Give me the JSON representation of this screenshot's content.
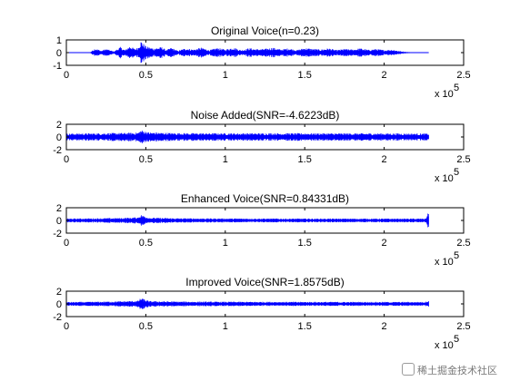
{
  "colors": {
    "signal": "#0000ff",
    "axes": "#000000",
    "background": "#ffffff"
  },
  "watermark": {
    "text": "稀土掘金技术社区",
    "icon": "logo-icon"
  },
  "chart_data": [
    {
      "type": "line",
      "title": "Original Voice(n=0.23)",
      "xlabel": "",
      "ylabel": "",
      "xlim": [
        0,
        250000
      ],
      "ylim": [
        -1,
        1
      ],
      "xticks": [
        0,
        0.5,
        1,
        1.5,
        2,
        2.5
      ],
      "yticks": [
        -1,
        0,
        1
      ],
      "x_exponent_label": "x 10",
      "x_exponent_power": "5",
      "signal_end_x": 228000,
      "envelope": {
        "x": [
          0,
          15000,
          18000,
          22000,
          25000,
          30000,
          34000,
          37000,
          40000,
          43000,
          45000,
          47000,
          50000,
          55000,
          60000,
          63000,
          66000,
          70000,
          75000,
          80000,
          85000,
          90000,
          95000,
          100000,
          105000,
          110000,
          115000,
          120000,
          125000,
          130000,
          135000,
          140000,
          145000,
          150000,
          155000,
          160000,
          165000,
          170000,
          175000,
          180000,
          185000,
          190000,
          195000,
          200000,
          205000,
          210000,
          215000,
          220000,
          228000
        ],
        "amp": [
          0.02,
          0.03,
          0.35,
          0.15,
          0.3,
          0.1,
          0.45,
          0.2,
          0.55,
          0.3,
          0.4,
          0.95,
          0.5,
          0.35,
          0.45,
          0.2,
          0.4,
          0.15,
          0.35,
          0.25,
          0.4,
          0.2,
          0.38,
          0.25,
          0.42,
          0.2,
          0.36,
          0.28,
          0.3,
          0.4,
          0.25,
          0.35,
          0.2,
          0.38,
          0.3,
          0.25,
          0.35,
          0.2,
          0.3,
          0.25,
          0.35,
          0.22,
          0.3,
          0.2,
          0.25,
          0.12,
          0.05,
          0.03,
          0.02
        ]
      }
    },
    {
      "type": "line",
      "title": "Noise Added(SNR=-4.6223dB)",
      "xlabel": "",
      "ylabel": "",
      "xlim": [
        0,
        250000
      ],
      "ylim": [
        -2,
        2
      ],
      "xticks": [
        0,
        0.5,
        1,
        1.5,
        2,
        2.5
      ],
      "yticks": [
        -2,
        0,
        2
      ],
      "x_exponent_label": "x 10",
      "x_exponent_power": "5",
      "signal_end_x": 228000,
      "envelope": {
        "x": [
          0,
          20000,
          35000,
          45000,
          47000,
          52000,
          70000,
          100000,
          150000,
          200000,
          228000
        ],
        "amp": [
          0.55,
          0.6,
          0.65,
          0.7,
          1.1,
          0.75,
          0.62,
          0.6,
          0.6,
          0.58,
          0.55
        ]
      }
    },
    {
      "type": "line",
      "title": "Enhanced Voice(SNR=0.84331dB)",
      "xlabel": "",
      "ylabel": "",
      "xlim": [
        0,
        250000
      ],
      "ylim": [
        -2,
        2
      ],
      "xticks": [
        0,
        0.5,
        1,
        1.5,
        2,
        2.5
      ],
      "yticks": [
        -2,
        0,
        2
      ],
      "x_exponent_label": "x 10",
      "x_exponent_power": "5",
      "signal_end_x": 228000,
      "envelope": {
        "x": [
          0,
          20000,
          35000,
          45000,
          47000,
          52000,
          70000,
          100000,
          150000,
          200000,
          226000,
          228000
        ],
        "amp": [
          0.3,
          0.35,
          0.4,
          0.5,
          0.9,
          0.45,
          0.35,
          0.32,
          0.3,
          0.3,
          0.3,
          1.4
        ]
      }
    },
    {
      "type": "line",
      "title": "Improved Voice(SNR=1.8575dB)",
      "xlabel": "",
      "ylabel": "",
      "xlim": [
        0,
        250000
      ],
      "ylim": [
        -2,
        2
      ],
      "xticks": [
        0,
        0.5,
        1,
        1.5,
        2,
        2.5
      ],
      "yticks": [
        -2,
        0,
        2
      ],
      "x_exponent_label": "x 10",
      "x_exponent_power": "5",
      "signal_end_x": 228000,
      "envelope": {
        "x": [
          0,
          20000,
          35000,
          45000,
          47000,
          52000,
          70000,
          100000,
          150000,
          200000,
          226000,
          228000
        ],
        "amp": [
          0.3,
          0.35,
          0.42,
          0.5,
          0.95,
          0.45,
          0.38,
          0.35,
          0.33,
          0.32,
          0.32,
          0.6
        ]
      }
    }
  ]
}
